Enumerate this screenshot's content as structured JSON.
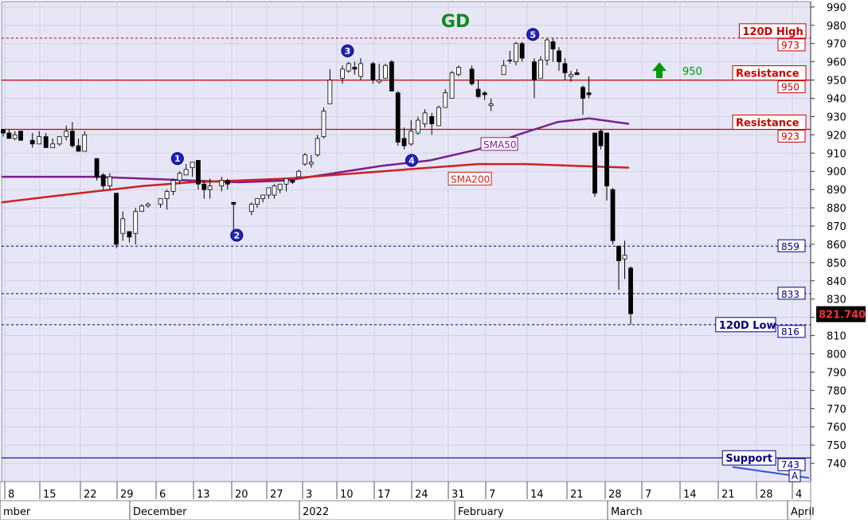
{
  "chart_data": {
    "type": "candlestick",
    "title": "GD",
    "ylim": [
      730,
      993
    ],
    "y_ticks": [
      740,
      750,
      760,
      770,
      780,
      790,
      800,
      810,
      820,
      830,
      840,
      850,
      860,
      870,
      880,
      890,
      900,
      910,
      920,
      930,
      940,
      950,
      960,
      970,
      980,
      990
    ],
    "x_tick_labels": [
      "8",
      "15",
      "22",
      "29",
      "6",
      "13",
      "20",
      "27",
      "3",
      "10",
      "17",
      "24",
      "31",
      "7",
      "14",
      "21",
      "28",
      "7",
      "14",
      "21",
      "28",
      "4"
    ],
    "month_labels": [
      "mber",
      "December",
      "2022",
      "February",
      "March",
      "April"
    ],
    "last_price_label": "821.740",
    "levels": [
      {
        "label": "120D High",
        "value": 973,
        "value_label": "973",
        "color": "#cc0000"
      },
      {
        "label": "Resistance",
        "value": 950,
        "value_label": "950",
        "color": "#cc0000"
      },
      {
        "label": "Resistance",
        "value": 923,
        "value_label": "923",
        "color": "#cc0000"
      },
      {
        "value": 859,
        "value_label": "859",
        "color": "#000080"
      },
      {
        "value": 833,
        "value_label": "833",
        "color": "#000080"
      },
      {
        "label": "120D Low",
        "value": 816,
        "value_label": "816",
        "color": "#000080"
      },
      {
        "label": "Support",
        "value": 743,
        "value_label": "743",
        "color": "#000080"
      }
    ],
    "moving_averages": [
      {
        "name": "SMA50",
        "color": "#7b1f8a"
      },
      {
        "name": "SMA200",
        "color": "#cc2222"
      }
    ],
    "wave_points": [
      {
        "label": "1",
        "date": "2021-12-10",
        "value": 907
      },
      {
        "label": "2",
        "date": "2021-12-21",
        "value": 865
      },
      {
        "label": "3",
        "date": "2022-01-12",
        "value": 966
      },
      {
        "label": "4",
        "date": "2022-01-24",
        "value": 906
      },
      {
        "label": "5",
        "date": "2022-02-15",
        "value": 975
      }
    ],
    "target_arrow": {
      "label": "950",
      "direction": "up",
      "color": "#009900"
    },
    "apex_label": "A",
    "series": [
      {
        "name": "daily candles",
        "ohlc": [
          [
            923,
            921,
            919,
            923
          ],
          [
            921,
            918,
            918,
            923
          ],
          [
            918,
            920,
            917,
            922
          ],
          [
            922,
            917,
            917,
            922
          ],
          [
            917,
            915,
            913,
            921
          ],
          [
            915,
            919,
            915,
            922
          ],
          [
            919,
            913,
            913,
            921
          ],
          [
            913,
            915,
            913,
            918
          ],
          [
            915,
            919,
            914,
            919
          ],
          [
            919,
            922,
            917,
            925
          ],
          [
            922,
            914,
            913,
            927
          ],
          [
            914,
            911,
            911,
            918
          ],
          [
            911,
            920,
            912,
            922
          ],
          [
            907,
            897,
            895,
            907
          ],
          [
            898,
            892,
            890,
            899
          ],
          [
            892,
            897,
            890,
            899
          ],
          [
            888,
            860,
            858,
            888
          ],
          [
            866,
            874,
            862,
            878
          ],
          [
            867,
            864,
            861,
            867
          ],
          [
            866,
            878,
            860,
            880
          ],
          [
            878,
            881,
            878,
            882
          ],
          [
            881,
            882,
            880,
            883
          ],
          [
            882,
            885,
            880,
            885
          ],
          [
            885,
            889,
            879,
            890
          ],
          [
            889,
            895,
            887,
            896
          ],
          [
            895,
            899,
            893,
            900
          ],
          [
            898,
            901,
            898,
            904
          ],
          [
            902,
            905,
            897,
            905
          ],
          [
            906,
            893,
            890,
            906
          ],
          [
            893,
            890,
            885,
            895
          ],
          [
            890,
            892,
            885,
            896
          ],
          [
            892,
            895,
            889,
            897
          ],
          [
            895,
            893,
            890,
            896
          ],
          [
            883,
            882,
            865,
            883
          ],
          [
            878,
            882,
            876,
            883
          ],
          [
            882,
            885,
            880,
            885
          ],
          [
            885,
            887,
            883,
            887
          ],
          [
            887,
            891,
            885,
            891
          ],
          [
            887,
            892,
            885,
            893
          ],
          [
            890,
            893,
            888,
            893
          ],
          [
            893,
            896,
            889,
            896
          ],
          [
            895,
            894,
            893,
            895
          ],
          [
            897,
            900,
            897,
            901
          ],
          [
            904,
            909,
            903,
            910
          ],
          [
            904,
            905,
            902,
            909
          ],
          [
            909,
            918,
            908,
            920
          ],
          [
            919,
            933,
            918,
            935
          ],
          [
            937,
            950,
            937,
            956
          ],
          [
            951,
            956,
            948,
            958
          ],
          [
            955,
            959,
            954,
            960
          ],
          [
            957,
            956,
            953,
            960
          ],
          [
            952,
            959,
            950,
            962
          ],
          [
            959,
            950,
            948,
            960
          ],
          [
            949,
            950,
            948,
            959
          ],
          [
            951,
            958,
            951,
            959
          ],
          [
            960,
            944,
            944,
            961
          ],
          [
            943,
            916,
            914,
            944
          ],
          [
            918,
            914,
            912,
            924
          ],
          [
            915,
            922,
            914,
            928
          ],
          [
            921,
            928,
            920,
            930
          ],
          [
            926,
            932,
            924,
            934
          ],
          [
            930,
            926,
            920,
            932
          ],
          [
            925,
            935,
            925,
            936
          ],
          [
            935,
            943,
            935,
            945
          ],
          [
            940,
            954,
            940,
            955
          ],
          [
            953,
            957,
            952,
            958
          ],
          [
            956,
            948,
            947,
            958
          ],
          [
            945,
            941,
            940,
            950
          ],
          [
            943,
            942,
            939,
            944
          ],
          [
            936,
            937,
            933,
            940
          ],
          [
            953,
            958,
            953,
            961
          ],
          [
            961,
            961,
            959,
            966
          ],
          [
            960,
            970,
            958,
            971
          ],
          [
            970,
            962,
            960,
            971
          ],
          [
            960,
            950,
            940,
            962
          ],
          [
            951,
            961,
            951,
            963
          ],
          [
            961,
            972,
            958,
            973
          ],
          [
            971,
            967,
            960,
            973
          ],
          [
            966,
            960,
            955,
            968
          ],
          [
            959,
            954,
            950,
            962
          ],
          [
            952,
            953,
            949,
            955
          ],
          [
            954,
            953,
            953,
            956
          ],
          [
            946,
            940,
            931,
            947
          ],
          [
            943,
            942,
            940,
            952
          ],
          [
            921,
            888,
            886,
            921
          ],
          [
            922,
            914,
            912,
            923
          ],
          [
            921,
            892,
            884,
            921
          ],
          [
            890,
            862,
            860,
            891
          ],
          [
            859,
            851,
            835,
            859
          ],
          [
            852,
            854,
            841,
            862
          ],
          [
            847,
            822,
            816,
            848
          ]
        ]
      }
    ]
  }
}
